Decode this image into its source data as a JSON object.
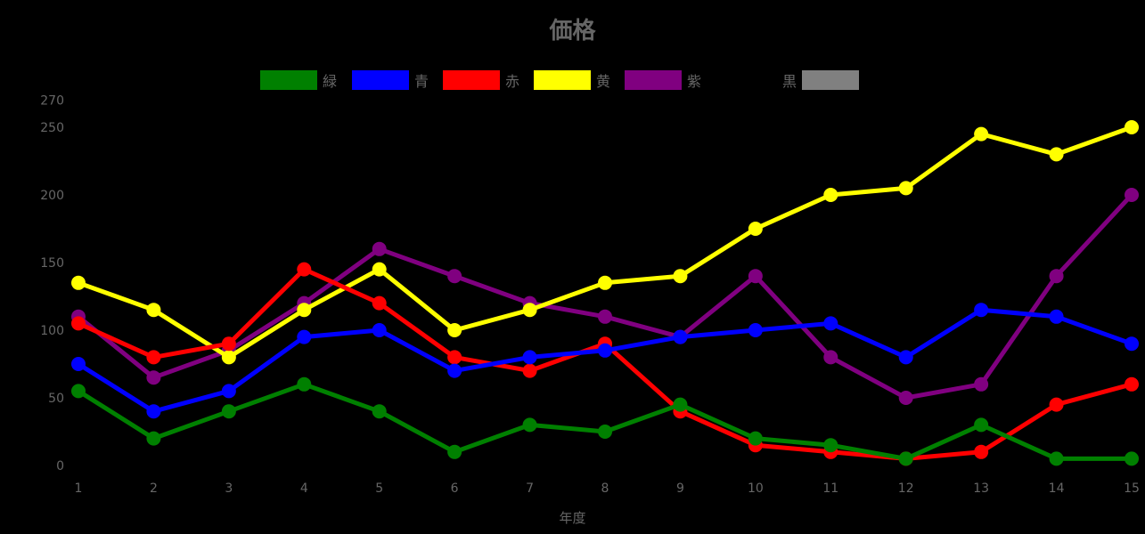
{
  "chart_data": {
    "type": "line",
    "title": "価格",
    "xlabel": "年度",
    "ylabel": "",
    "x": [
      1,
      2,
      3,
      4,
      5,
      6,
      7,
      8,
      9,
      10,
      11,
      12,
      13,
      14,
      15
    ],
    "ylim": [
      0,
      270
    ],
    "yticks": [
      0,
      50,
      100,
      150,
      200,
      250,
      270
    ],
    "grid": false,
    "legend_position": "top",
    "series": [
      {
        "name": "緑",
        "color": "#008000",
        "values": [
          55,
          20,
          40,
          60,
          40,
          10,
          30,
          25,
          45,
          20,
          15,
          5,
          30,
          5,
          5
        ]
      },
      {
        "name": "青",
        "color": "#0000ff",
        "values": [
          75,
          40,
          55,
          95,
          100,
          70,
          80,
          85,
          95,
          100,
          105,
          80,
          115,
          110,
          90
        ]
      },
      {
        "name": "赤",
        "color": "#ff0000",
        "values": [
          105,
          80,
          90,
          145,
          120,
          80,
          70,
          90,
          40,
          15,
          10,
          5,
          10,
          45,
          60
        ]
      },
      {
        "name": "黄",
        "color": "#ffff00",
        "values": [
          135,
          115,
          80,
          115,
          145,
          100,
          115,
          135,
          140,
          175,
          200,
          205,
          245,
          230,
          250
        ]
      },
      {
        "name": "紫",
        "color": "#800080",
        "values": [
          110,
          65,
          85,
          120,
          160,
          140,
          120,
          110,
          95,
          140,
          80,
          50,
          60,
          140,
          200
        ]
      },
      {
        "name": "黒",
        "color": "#000000",
        "values": []
      }
    ]
  },
  "legend": [
    {
      "label": "緑",
      "color": "#008000",
      "swatch_first": true
    },
    {
      "label": "青",
      "color": "#0000ff",
      "swatch_first": true
    },
    {
      "label": "赤",
      "color": "#ff0000",
      "swatch_first": true
    },
    {
      "label": "黄",
      "color": "#ffff00",
      "swatch_first": true
    },
    {
      "label": "紫",
      "color": "#800080",
      "swatch_first": true
    },
    {
      "label": "黒",
      "color": "#808080",
      "swatch_first": false
    }
  ]
}
